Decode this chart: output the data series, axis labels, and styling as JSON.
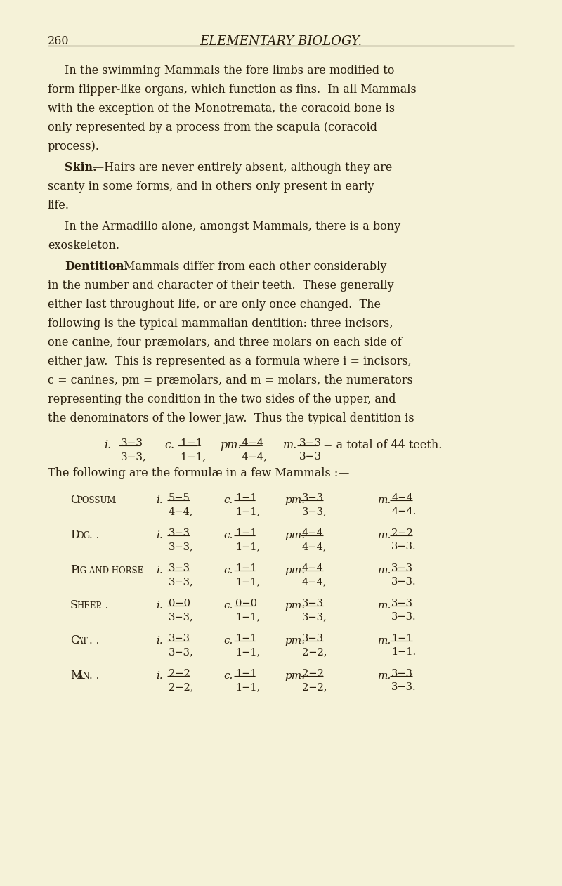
{
  "bg_color": "#f5f2d8",
  "text_color": "#2a1f0e",
  "page_number": "260",
  "header_title": "ELEMENTARY BIOLOGY.",
  "animals": [
    "Opossum",
    "Dog",
    "Pig and Horse",
    "Sheep",
    "Cat",
    "Man"
  ],
  "animal_dots": [
    ". .",
    ". . .",
    ".",
    ". . .",
    ". . .",
    ". ."
  ],
  "i_num": [
    "5−5",
    "3−3",
    "3−3",
    "0−0",
    "3−3",
    "2−2"
  ],
  "i_den": [
    "4−4",
    "3−3",
    "3−3",
    "3−3",
    "3−3",
    "2−2"
  ],
  "c_num": [
    "1−1",
    "1−1",
    "1−1",
    "0−0",
    "1−1",
    "1−1,"
  ],
  "c_den": [
    "1−1",
    "1−1",
    "1−1",
    "1−1",
    "1−1",
    "1−1"
  ],
  "pm_num": [
    "3−3",
    "4−4",
    "4−4",
    "3−3",
    "3−3",
    "2−2"
  ],
  "pm_den": [
    "3−3",
    "4−4",
    "4−4",
    "3−3",
    "2−2",
    "2−2"
  ],
  "m_num": [
    "4−4",
    "2−2",
    "3−3",
    "3−3",
    "1−1",
    "3−3"
  ],
  "m_den": [
    "4−4",
    "3−3",
    "3−3",
    "3−3",
    "1−1",
    "3−3"
  ]
}
